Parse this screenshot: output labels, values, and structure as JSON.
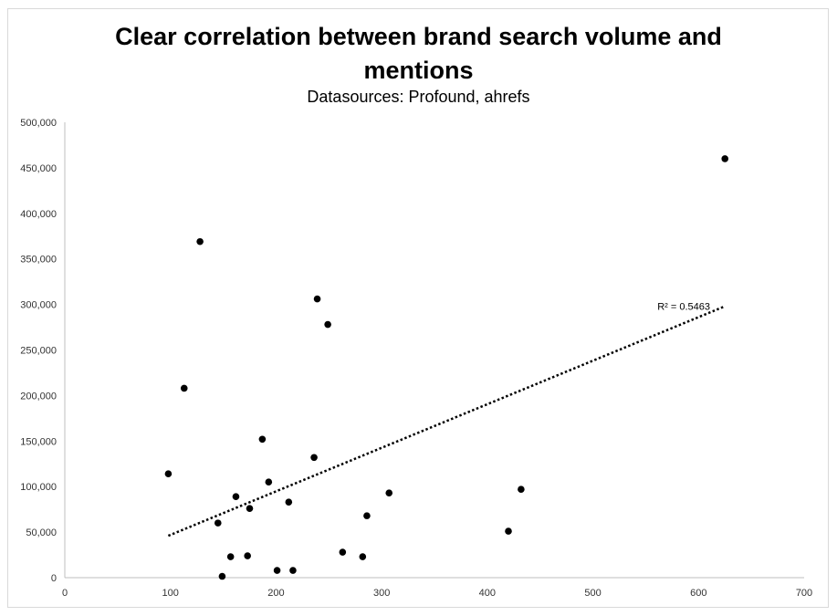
{
  "chart_data": {
    "type": "scatter",
    "title": "Clear correlation between brand search volume and\nmentions",
    "subtitle": "Datasources: Profound, ahrefs",
    "xlabel": "",
    "ylabel": "",
    "xlim": [
      0,
      700
    ],
    "ylim": [
      0,
      500000
    ],
    "x_ticks": [
      "0",
      "100",
      "200",
      "300",
      "400",
      "500",
      "600",
      "700"
    ],
    "y_ticks": [
      "0",
      "50,000",
      "100,000",
      "150,000",
      "200,000",
      "250,000",
      "300,000",
      "350,000",
      "400,000",
      "450,000",
      "500,000"
    ],
    "grid": false,
    "legend": "none",
    "marker_color": "#000000",
    "points": [
      {
        "x": 98,
        "y": 114000
      },
      {
        "x": 113,
        "y": 208000
      },
      {
        "x": 128,
        "y": 369000
      },
      {
        "x": 145,
        "y": 60000
      },
      {
        "x": 149,
        "y": 1500
      },
      {
        "x": 157,
        "y": 23000
      },
      {
        "x": 162,
        "y": 89000
      },
      {
        "x": 173,
        "y": 24000
      },
      {
        "x": 175,
        "y": 76000
      },
      {
        "x": 187,
        "y": 152000
      },
      {
        "x": 193,
        "y": 105000
      },
      {
        "x": 201,
        "y": 8000
      },
      {
        "x": 212,
        "y": 83000
      },
      {
        "x": 216,
        "y": 8000
      },
      {
        "x": 236,
        "y": 132000
      },
      {
        "x": 239,
        "y": 306000
      },
      {
        "x": 249,
        "y": 278000
      },
      {
        "x": 263,
        "y": 28000
      },
      {
        "x": 282,
        "y": 23000
      },
      {
        "x": 286,
        "y": 68000
      },
      {
        "x": 307,
        "y": 93000
      },
      {
        "x": 420,
        "y": 51000
      },
      {
        "x": 432,
        "y": 97000
      },
      {
        "x": 625,
        "y": 460000
      }
    ],
    "trendline": {
      "type": "linear",
      "style": "dotted",
      "x_start": 98,
      "y_start": 46000,
      "x_end": 625,
      "y_end": 298000,
      "label": "R² = 0.5463"
    }
  }
}
